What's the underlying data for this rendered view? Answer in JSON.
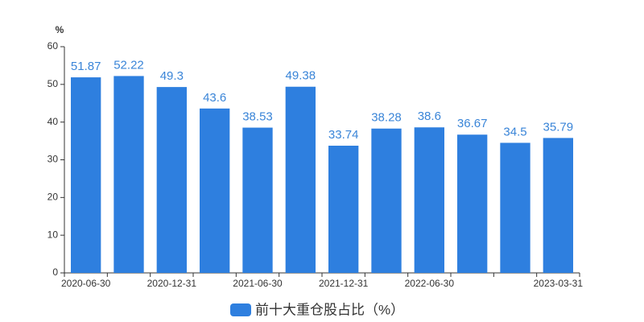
{
  "chart_data": {
    "type": "bar",
    "y_label": "%",
    "categories": [
      "2020-06-30",
      null,
      "2020-12-31",
      null,
      "2021-06-30",
      null,
      "2021-12-31",
      null,
      "2022-06-30",
      null,
      null,
      "2023-03-31"
    ],
    "series": [
      {
        "name": "前十大重仓股占比（%）",
        "color": "#2e7fdf",
        "values": [
          51.87,
          52.22,
          49.3,
          43.6,
          38.53,
          49.38,
          33.74,
          38.28,
          38.6,
          36.67,
          34.5,
          35.79
        ]
      }
    ],
    "ylim": [
      0,
      60
    ],
    "yticks": [
      0,
      10,
      20,
      30,
      40,
      50,
      60
    ],
    "grid": false,
    "legend": "bottom"
  }
}
